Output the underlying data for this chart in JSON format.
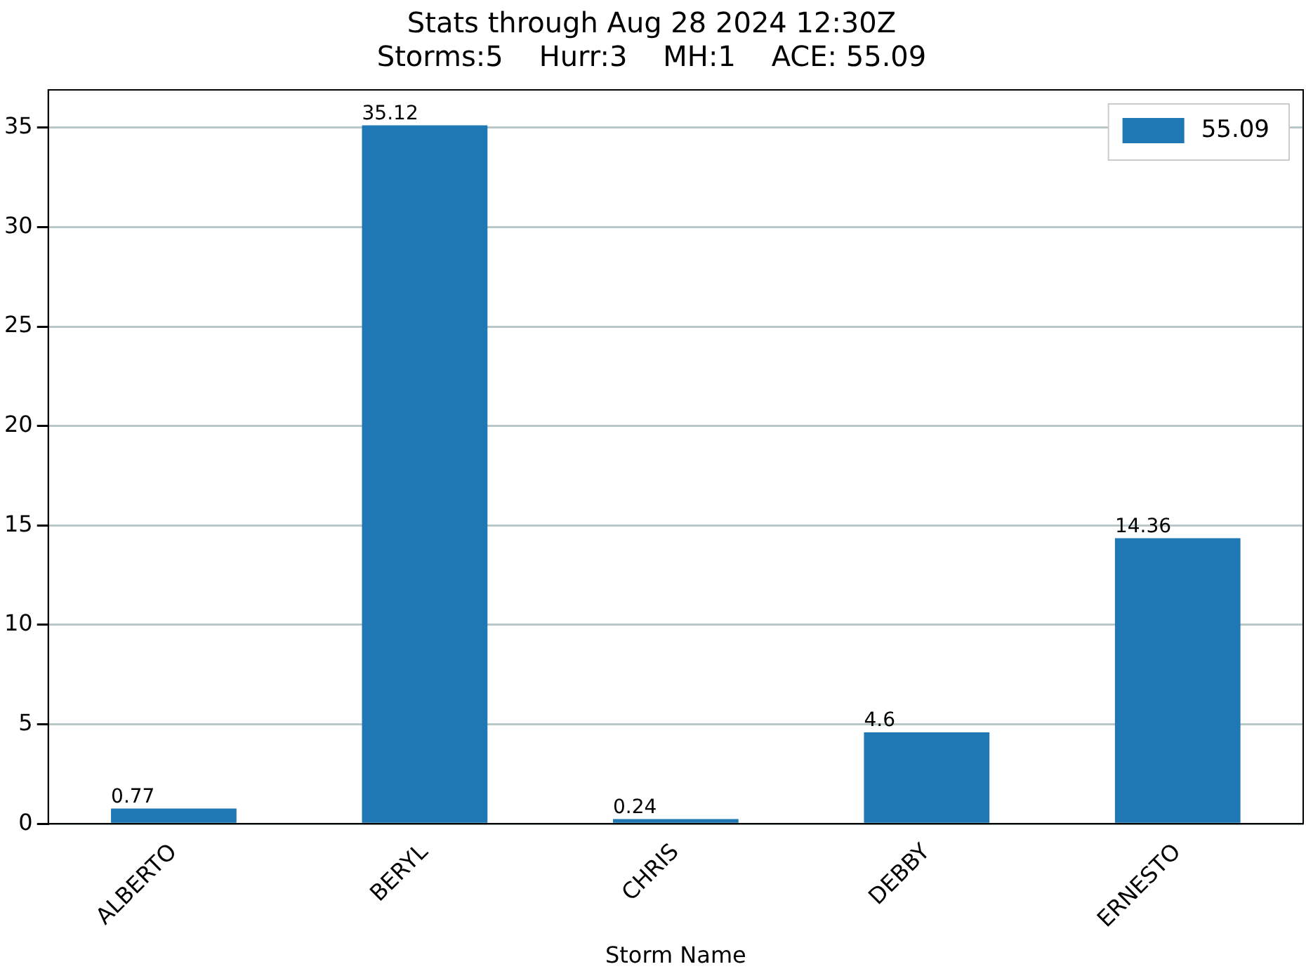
{
  "chart_data": {
    "type": "bar",
    "title": "Stats through Aug 28 2024 12:30Z",
    "subtitle": "Storms:5    Hurr:3    MH:1    ACE: 55.09",
    "xlabel": "Storm Name",
    "categories": [
      "ALBERTO",
      "BERYL",
      "CHRIS",
      "DEBBY",
      "ERNESTO"
    ],
    "series": [
      {
        "name": "55.09",
        "color": "#1f77b4",
        "values": [
          0.77,
          35.12,
          0.24,
          4.6,
          14.36
        ]
      }
    ],
    "ylim": [
      0,
      36.9
    ],
    "yticks": [
      0,
      5,
      10,
      15,
      20,
      25,
      30,
      35
    ],
    "grid": "y",
    "legend": "top right",
    "data_labels": true
  }
}
